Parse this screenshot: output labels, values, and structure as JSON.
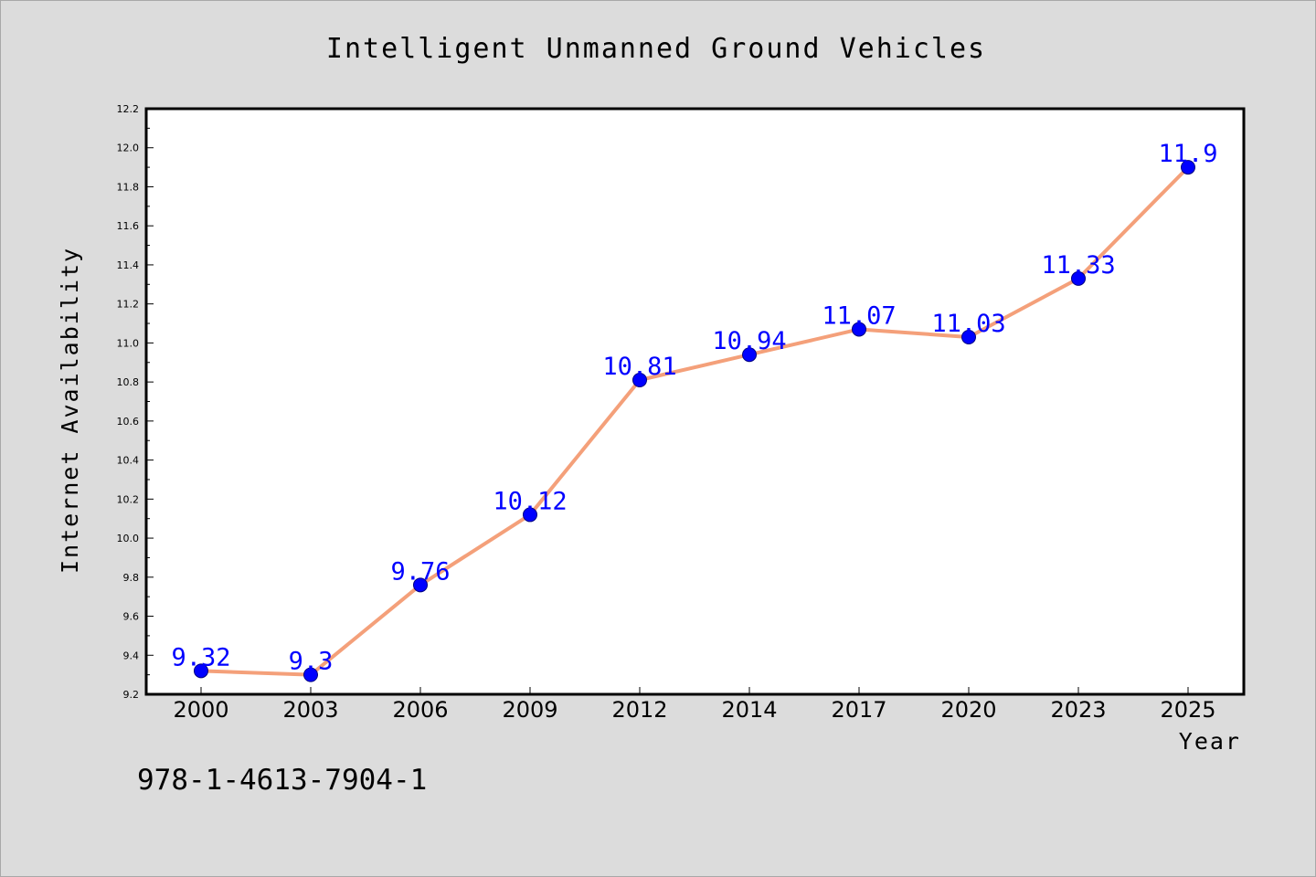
{
  "chart_data": {
    "type": "line",
    "title": "Intelligent Unmanned Ground Vehicles",
    "xlabel": "Year",
    "ylabel": "Internet Availability",
    "categories": [
      "2000",
      "2003",
      "2006",
      "2009",
      "2012",
      "2014",
      "2017",
      "2020",
      "2023",
      "2025"
    ],
    "series": [
      {
        "values": [
          9.32,
          9.3,
          9.76,
          10.12,
          10.81,
          10.94,
          11.07,
          11.03,
          11.33,
          11.9
        ],
        "data_labels": [
          "9.32",
          "9.3",
          "9.76",
          "10.12",
          "10.81",
          "10.94",
          "11.07",
          "11.03",
          "11.33",
          "11.9"
        ],
        "line_color": "#f4a07a",
        "marker_color": "#0000ff"
      }
    ],
    "ylim": [
      9.2,
      12.2
    ],
    "yticks": [
      "9.2",
      "9.4",
      "9.6",
      "9.8",
      "10.0",
      "10.2",
      "10.4",
      "10.6",
      "10.8",
      "11.0",
      "11.2",
      "11.4",
      "11.6",
      "11.8",
      "12.0",
      "12.2"
    ],
    "grid": false,
    "legend": "none"
  },
  "caption": "978-1-4613-7904-1",
  "colors": {
    "background": "#dcdcdc",
    "plot_background": "#ffffff",
    "line": "#f4a07a",
    "marker": "#0000ff",
    "data_label": "#0000ff"
  }
}
